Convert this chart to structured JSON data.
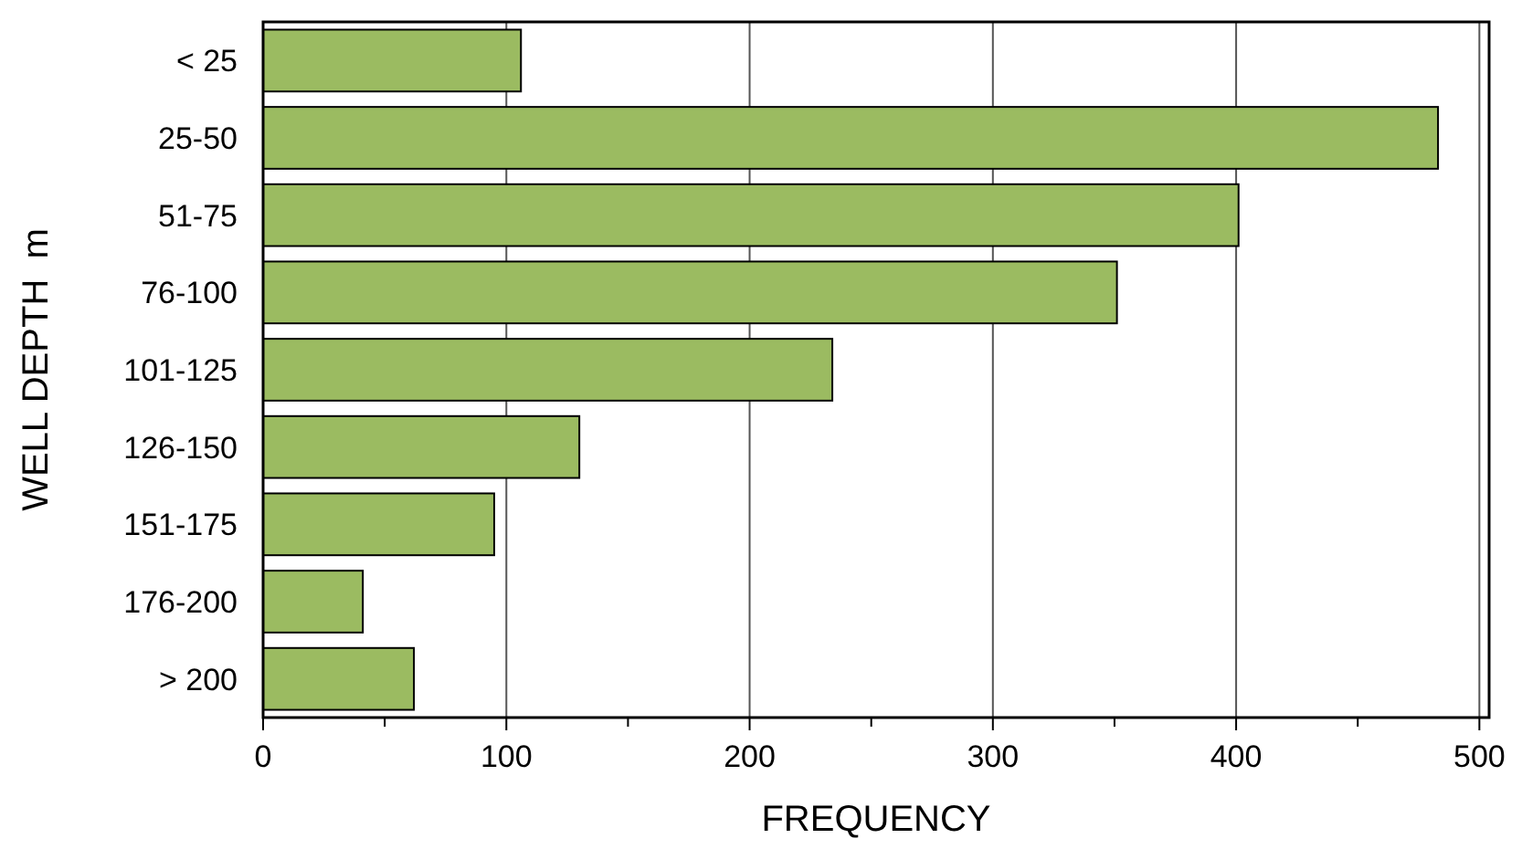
{
  "chart_data": {
    "type": "bar",
    "orientation": "horizontal",
    "xlabel": "FREQUENCY",
    "ylabel": "WELL DEPTH  m",
    "categories": [
      "< 25",
      "25-50",
      "51-75",
      "76-100",
      "101-125",
      "126-150",
      "151-175",
      "176-200",
      "> 200"
    ],
    "values": [
      106,
      483,
      401,
      351,
      234,
      130,
      95,
      41,
      62
    ],
    "color": "#9bbb61",
    "xlim": [
      0,
      504
    ],
    "xticks": [
      0,
      {
        "value": 50,
        "label": null
      },
      100,
      {
        "value": 150,
        "label": null
      },
      200,
      {
        "value": 250,
        "label": null
      },
      300,
      {
        "value": 350,
        "label": null
      },
      400,
      {
        "value": 450,
        "label": null
      },
      500
    ],
    "grid": "x"
  }
}
